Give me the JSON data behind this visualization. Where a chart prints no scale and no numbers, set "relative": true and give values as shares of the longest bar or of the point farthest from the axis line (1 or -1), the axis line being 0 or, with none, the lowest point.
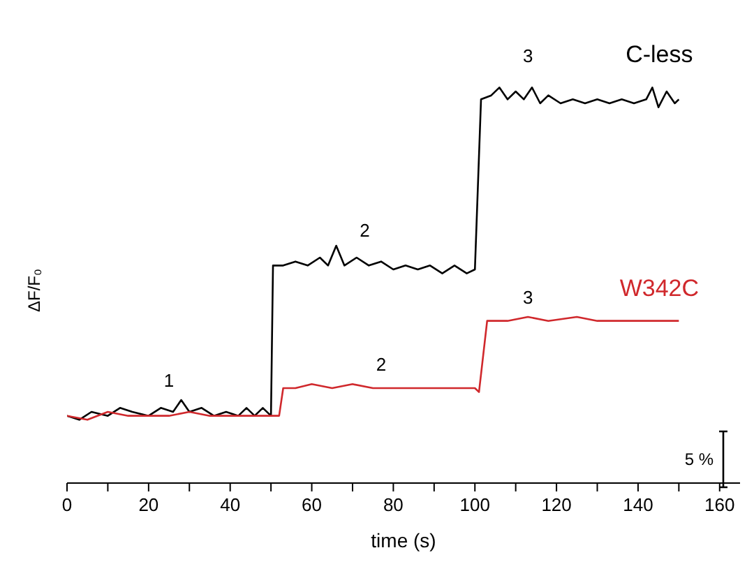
{
  "chart_data": {
    "type": "line",
    "relative": true,
    "xlabel": "time (s)",
    "ylabel": "ΔF/F₀",
    "xlim": [
      0,
      165
    ],
    "xticks": [
      0,
      {
        "value": 10,
        "label": null
      },
      20,
      {
        "value": 30,
        "label": null
      },
      40,
      {
        "value": 50,
        "label": null
      },
      60,
      {
        "value": 70,
        "label": null
      },
      80,
      {
        "value": 90,
        "label": null
      },
      100,
      {
        "value": 110,
        "label": null
      },
      120,
      {
        "value": 130,
        "label": null
      },
      140,
      {
        "value": 150,
        "label": null
      },
      160
    ],
    "grid": false,
    "marker": "none",
    "line_style": "solid",
    "series": [
      {
        "name": "C-less",
        "color": "#000000",
        "x": [
          0,
          3,
          6,
          10,
          13,
          16,
          20,
          23,
          26,
          28,
          30,
          33,
          36,
          39,
          42,
          44,
          46,
          48,
          50,
          50.5,
          53,
          56,
          59,
          62,
          64,
          66,
          68,
          71,
          74,
          77,
          80,
          83,
          86,
          89,
          92,
          95,
          98,
          100,
          101.5,
          104,
          106,
          108,
          110,
          112,
          114,
          116,
          118,
          121,
          124,
          127,
          130,
          133,
          136,
          139,
          142,
          143.5,
          145,
          147,
          149,
          150
        ],
        "values": [
          0.17,
          0.16,
          0.18,
          0.17,
          0.19,
          0.18,
          0.17,
          0.19,
          0.18,
          0.21,
          0.18,
          0.19,
          0.17,
          0.18,
          0.17,
          0.19,
          0.17,
          0.19,
          0.17,
          0.55,
          0.55,
          0.56,
          0.55,
          0.57,
          0.55,
          0.6,
          0.55,
          0.57,
          0.55,
          0.56,
          0.54,
          0.55,
          0.54,
          0.55,
          0.53,
          0.55,
          0.53,
          0.54,
          0.97,
          0.98,
          1.0,
          0.97,
          0.99,
          0.97,
          1.0,
          0.96,
          0.98,
          0.96,
          0.97,
          0.96,
          0.97,
          0.96,
          0.97,
          0.96,
          0.97,
          1.0,
          0.95,
          0.99,
          0.96,
          0.97
        ]
      },
      {
        "name": "W342C",
        "color": "#d0282c",
        "x": [
          0,
          5,
          10,
          15,
          20,
          25,
          30,
          35,
          40,
          45,
          48,
          52,
          53,
          56,
          60,
          65,
          70,
          75,
          80,
          85,
          90,
          95,
          100,
          101,
          103,
          108,
          113,
          118,
          125,
          130,
          135,
          140,
          145,
          150
        ],
        "values": [
          0.17,
          0.16,
          0.18,
          0.17,
          0.17,
          0.17,
          0.18,
          0.17,
          0.17,
          0.17,
          0.17,
          0.17,
          0.24,
          0.24,
          0.25,
          0.24,
          0.25,
          0.24,
          0.24,
          0.24,
          0.24,
          0.24,
          0.24,
          0.23,
          0.41,
          0.41,
          0.42,
          0.41,
          0.42,
          0.41,
          0.41,
          0.41,
          0.41,
          0.41
        ]
      }
    ],
    "annotations": [
      "1",
      "2",
      "3",
      "2",
      "3",
      "5 %"
    ]
  }
}
